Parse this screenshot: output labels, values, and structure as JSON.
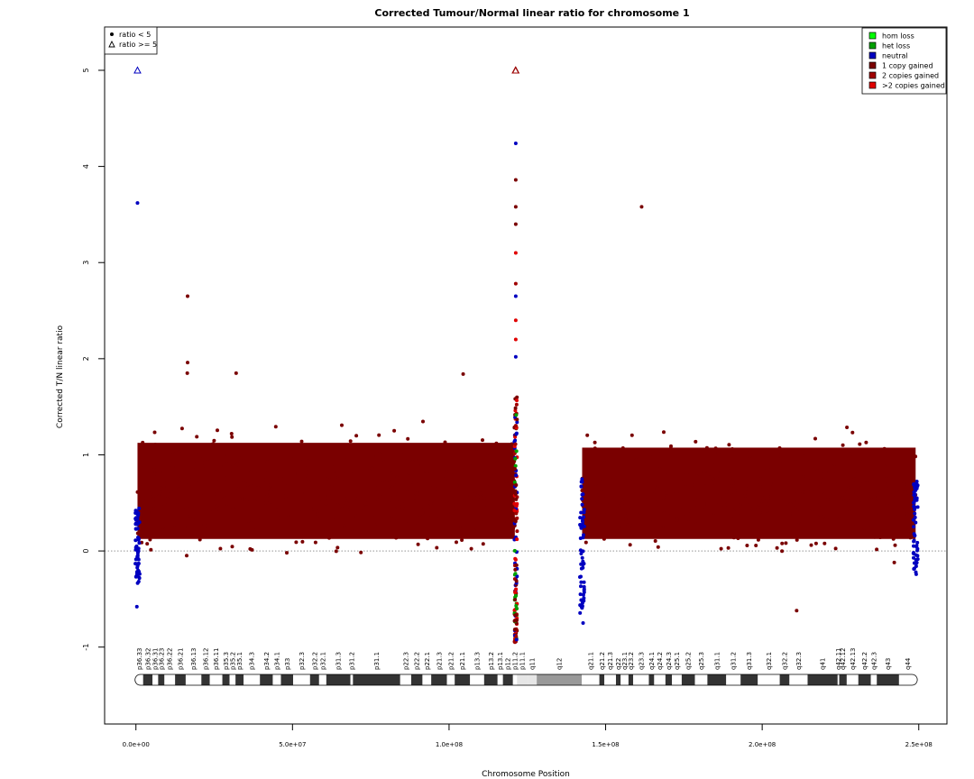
{
  "chart_data": {
    "type": "scatter",
    "title": "Corrected Tumour/Normal linear ratio for chromosome  1",
    "xlabel": "Chromosome Position",
    "ylabel": "Corrected T/N linear ratio",
    "xlim": [
      -10000000,
      259000000
    ],
    "ylim": [
      -1.8,
      5.45
    ],
    "x_ticks": [
      0,
      50000000,
      100000000,
      150000000,
      200000000,
      250000000
    ],
    "x_tick_labels": [
      "0.0e+00",
      "5.0e+07",
      "1.0e+08",
      "1.5e+08",
      "2.0e+08",
      "2.5e+08"
    ],
    "y_ticks": [
      -1,
      0,
      1,
      2,
      3,
      4,
      5
    ],
    "y_tick_labels": [
      "-1",
      "0",
      "1",
      "2",
      "3",
      "4",
      "5"
    ],
    "reference_line_y": 0,
    "legend_shape": {
      "position": "top-left",
      "entries": [
        {
          "label": "ratio < 5",
          "symbol": "circle"
        },
        {
          "label": "ratio >= 5",
          "symbol": "triangle"
        }
      ]
    },
    "legend_state": {
      "position": "top-right",
      "entries": [
        {
          "label": "hom loss",
          "color": "#00ff00"
        },
        {
          "label": "het loss",
          "color": "#00a000"
        },
        {
          "label": "neutral",
          "color": "#0000c0"
        },
        {
          "label": "1 copy gained",
          "color": "#7a0000"
        },
        {
          "label": "2 copies gained",
          "color": "#a00000"
        },
        {
          "label": ">2 copies gained",
          "color": "#e00000"
        }
      ]
    },
    "bulk_regions": [
      {
        "state": "1 copy gained",
        "x_start": 500000,
        "x_end": 121000000,
        "y_low": 0.05,
        "y_high": 1.2
      },
      {
        "state": "1 copy gained",
        "x_start": 142500000,
        "x_end": 249000000,
        "y_low": 0.05,
        "y_high": 1.15
      }
    ],
    "outlier_points": [
      {
        "x": 500000,
        "y": 3.62,
        "state": "neutral"
      },
      {
        "x": 300000,
        "y": -0.58,
        "state": "neutral"
      },
      {
        "x": 16500000,
        "y": 2.65,
        "state": "1 copy gained"
      },
      {
        "x": 16500000,
        "y": 1.96,
        "state": "1 copy gained"
      },
      {
        "x": 16400000,
        "y": 1.85,
        "state": "1 copy gained"
      },
      {
        "x": 32000000,
        "y": 1.85,
        "state": "1 copy gained"
      },
      {
        "x": 104500000,
        "y": 1.84,
        "state": "1 copy gained"
      },
      {
        "x": 161500000,
        "y": 3.58,
        "state": "1 copy gained"
      },
      {
        "x": 121300000,
        "y": 4.24,
        "state": "neutral"
      },
      {
        "x": 121300000,
        "y": 3.86,
        "state": "1 copy gained"
      },
      {
        "x": 121300000,
        "y": 3.58,
        "state": "1 copy gained"
      },
      {
        "x": 121300000,
        "y": 3.4,
        "state": "1 copy gained"
      },
      {
        "x": 121300000,
        "y": 3.1,
        "state": ">2 copies gained"
      },
      {
        "x": 121300000,
        "y": 2.78,
        "state": "2 copies gained"
      },
      {
        "x": 121300000,
        "y": 2.65,
        "state": "neutral"
      },
      {
        "x": 121300000,
        "y": 2.4,
        "state": ">2 copies gained"
      },
      {
        "x": 121300000,
        "y": 2.2,
        "state": ">2 copies gained"
      },
      {
        "x": 121300000,
        "y": 2.02,
        "state": "neutral"
      },
      {
        "x": 211000000,
        "y": -0.62,
        "state": "1 copy gained"
      },
      {
        "x": 142800000,
        "y": -0.75,
        "state": "neutral"
      }
    ],
    "capped_points": [
      {
        "x": 500000,
        "y": 5,
        "state": "neutral"
      },
      {
        "x": 121300000,
        "y": 5,
        "state": "1 copy gained"
      },
      {
        "x": 121200000,
        "y": 5,
        "state": "2 copies gained"
      }
    ],
    "ideogram_bands": [
      {
        "label": "p36.33",
        "start": 0,
        "end": 2300000,
        "stain": "gneg"
      },
      {
        "label": "p36.32",
        "start": 2300000,
        "end": 5300000,
        "stain": "gpos"
      },
      {
        "label": "p36.31",
        "start": 5300000,
        "end": 7100000,
        "stain": "gneg"
      },
      {
        "label": "p36.23",
        "start": 7100000,
        "end": 9100000,
        "stain": "gpos"
      },
      {
        "label": "p36.22",
        "start": 9100000,
        "end": 12500000,
        "stain": "gneg"
      },
      {
        "label": "p36.21",
        "start": 12500000,
        "end": 15900000,
        "stain": "gpos"
      },
      {
        "label": "p36.13",
        "start": 15900000,
        "end": 20900000,
        "stain": "gneg"
      },
      {
        "label": "p36.12",
        "start": 20900000,
        "end": 23600000,
        "stain": "gpos"
      },
      {
        "label": "p36.11",
        "start": 23600000,
        "end": 27600000,
        "stain": "gneg"
      },
      {
        "label": "p35.3",
        "start": 27600000,
        "end": 29900000,
        "stain": "gpos"
      },
      {
        "label": "p35.2",
        "start": 29900000,
        "end": 31800000,
        "stain": "gneg"
      },
      {
        "label": "p35.1",
        "start": 31800000,
        "end": 34400000,
        "stain": "gpos"
      },
      {
        "label": "p34.3",
        "start": 34400000,
        "end": 39600000,
        "stain": "gneg"
      },
      {
        "label": "p34.2",
        "start": 39600000,
        "end": 43700000,
        "stain": "gpos"
      },
      {
        "label": "p34.1",
        "start": 43700000,
        "end": 46300000,
        "stain": "gneg"
      },
      {
        "label": "p33",
        "start": 46300000,
        "end": 50200000,
        "stain": "gpos"
      },
      {
        "label": "p32.3",
        "start": 50200000,
        "end": 55600000,
        "stain": "gneg"
      },
      {
        "label": "p32.2",
        "start": 55600000,
        "end": 58500000,
        "stain": "gpos"
      },
      {
        "label": "p32.1",
        "start": 58500000,
        "end": 60800000,
        "stain": "gneg"
      },
      {
        "label": "p31.3",
        "start": 60800000,
        "end": 68500000,
        "stain": "gpos"
      },
      {
        "label": "p31.2",
        "start": 68500000,
        "end": 69300000,
        "stain": "gneg"
      },
      {
        "label": "p31.1",
        "start": 69300000,
        "end": 84400000,
        "stain": "gpos"
      },
      {
        "label": "p22.3",
        "start": 84400000,
        "end": 87900000,
        "stain": "gneg"
      },
      {
        "label": "p22.2",
        "start": 87900000,
        "end": 91500000,
        "stain": "gpos"
      },
      {
        "label": "p22.1",
        "start": 91500000,
        "end": 94300000,
        "stain": "gneg"
      },
      {
        "label": "p21.3",
        "start": 94300000,
        "end": 99300000,
        "stain": "gpos"
      },
      {
        "label": "p21.2",
        "start": 99300000,
        "end": 101800000,
        "stain": "gneg"
      },
      {
        "label": "p21.1",
        "start": 101800000,
        "end": 106700000,
        "stain": "gpos"
      },
      {
        "label": "p13.3",
        "start": 106700000,
        "end": 111200000,
        "stain": "gneg"
      },
      {
        "label": "p13.2",
        "start": 111200000,
        "end": 115500000,
        "stain": "gpos"
      },
      {
        "label": "p13.1",
        "start": 115500000,
        "end": 117200000,
        "stain": "gneg"
      },
      {
        "label": "p12",
        "start": 117200000,
        "end": 120400000,
        "stain": "gpos"
      },
      {
        "label": "p11.2",
        "start": 120400000,
        "end": 121700000,
        "stain": "gneg"
      },
      {
        "label": "p11.1",
        "start": 121700000,
        "end": 125100000,
        "stain": "acen"
      },
      {
        "label": "q11",
        "start": 125100000,
        "end": 128000000,
        "stain": "acen"
      },
      {
        "label": "q12",
        "start": 128000000,
        "end": 142400000,
        "stain": "gvar"
      },
      {
        "label": "q21.1",
        "start": 142400000,
        "end": 148000000,
        "stain": "gneg"
      },
      {
        "label": "q21.2",
        "start": 148000000,
        "end": 149600000,
        "stain": "gpos"
      },
      {
        "label": "q21.3",
        "start": 149600000,
        "end": 153300000,
        "stain": "gneg"
      },
      {
        "label": "q22",
        "start": 153300000,
        "end": 154800000,
        "stain": "gpos"
      },
      {
        "label": "q23.1",
        "start": 154800000,
        "end": 157300000,
        "stain": "gneg"
      },
      {
        "label": "q23.2",
        "start": 157300000,
        "end": 158800000,
        "stain": "gpos"
      },
      {
        "label": "q23.3",
        "start": 158800000,
        "end": 163800000,
        "stain": "gneg"
      },
      {
        "label": "q24.1",
        "start": 163800000,
        "end": 165500000,
        "stain": "gpos"
      },
      {
        "label": "q24.2",
        "start": 165500000,
        "end": 169100000,
        "stain": "gneg"
      },
      {
        "label": "q24.3",
        "start": 169100000,
        "end": 171200000,
        "stain": "gpos"
      },
      {
        "label": "q25.1",
        "start": 171200000,
        "end": 174300000,
        "stain": "gneg"
      },
      {
        "label": "q25.2",
        "start": 174300000,
        "end": 178500000,
        "stain": "gpos"
      },
      {
        "label": "q25.3",
        "start": 178500000,
        "end": 182500000,
        "stain": "gneg"
      },
      {
        "label": "q31.1",
        "start": 182500000,
        "end": 188500000,
        "stain": "gpos"
      },
      {
        "label": "q31.2",
        "start": 188500000,
        "end": 193100000,
        "stain": "gneg"
      },
      {
        "label": "q31.3",
        "start": 193100000,
        "end": 198600000,
        "stain": "gpos"
      },
      {
        "label": "q32.1",
        "start": 198600000,
        "end": 205600000,
        "stain": "gneg"
      },
      {
        "label": "q32.2",
        "start": 205600000,
        "end": 208700000,
        "stain": "gpos"
      },
      {
        "label": "q32.3",
        "start": 208700000,
        "end": 214500000,
        "stain": "gneg"
      },
      {
        "label": "q41",
        "start": 214500000,
        "end": 224100000,
        "stain": "gpos"
      },
      {
        "label": "q42.11",
        "start": 224100000,
        "end": 224600000,
        "stain": "gneg"
      },
      {
        "label": "q42.12",
        "start": 224600000,
        "end": 227000000,
        "stain": "gpos"
      },
      {
        "label": "q42.13",
        "start": 227000000,
        "end": 230700000,
        "stain": "gneg"
      },
      {
        "label": "q42.2",
        "start": 230700000,
        "end": 234700000,
        "stain": "gpos"
      },
      {
        "label": "q42.3",
        "start": 234700000,
        "end": 236600000,
        "stain": "gneg"
      },
      {
        "label": "q43",
        "start": 236600000,
        "end": 243700000,
        "stain": "gpos"
      },
      {
        "label": "q44",
        "start": 243700000,
        "end": 249250000,
        "stain": "gneg"
      }
    ]
  }
}
